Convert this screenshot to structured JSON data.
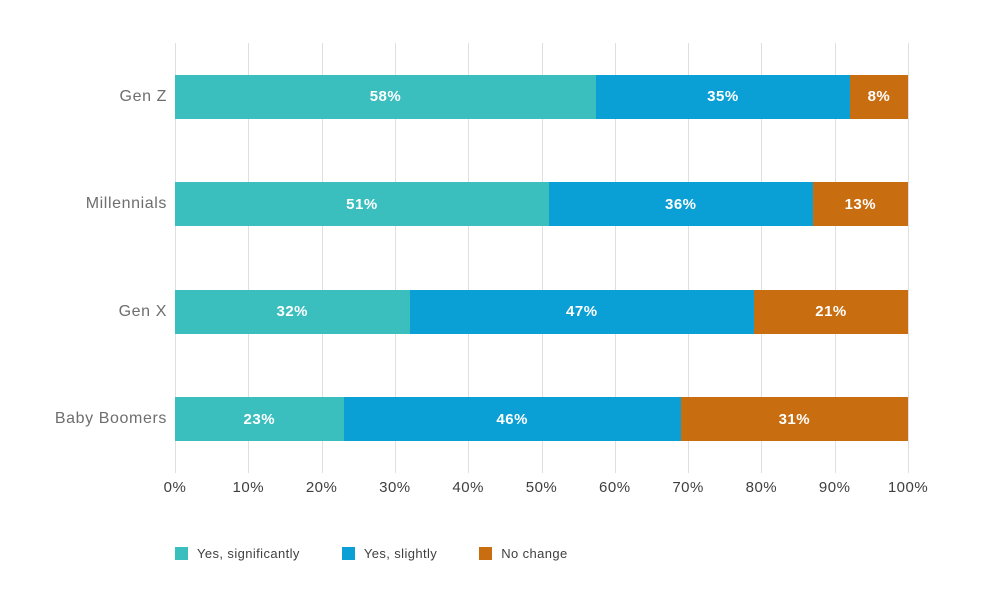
{
  "chart_data": {
    "type": "bar",
    "orientation": "horizontal-stacked",
    "categories": [
      "Gen Z",
      "Millennials",
      "Gen X",
      "Baby Boomers"
    ],
    "series": [
      {
        "name": "Yes, significantly",
        "color": "#3ABEBE",
        "values": [
          58,
          51,
          32,
          23
        ]
      },
      {
        "name": "Yes, slightly",
        "color": "#0A9FD5",
        "values": [
          35,
          36,
          47,
          46
        ]
      },
      {
        "name": "No change",
        "color": "#C96D11",
        "values": [
          8,
          13,
          21,
          31
        ]
      }
    ],
    "value_suffix": "%",
    "x_ticks": [
      "0%",
      "10%",
      "20%",
      "30%",
      "40%",
      "50%",
      "60%",
      "70%",
      "80%",
      "90%",
      "100%"
    ],
    "xlim": [
      0,
      100
    ],
    "grid": "vertical",
    "legend_position": "bottom-left"
  },
  "colors": {
    "background": "#FFFFFF",
    "gridline": "#DFDFDF",
    "category_label": "#6E6E6E",
    "axis_label": "#3F3F3F",
    "data_label": "#FFFFFF",
    "legend_label": "#3F3F3F"
  }
}
